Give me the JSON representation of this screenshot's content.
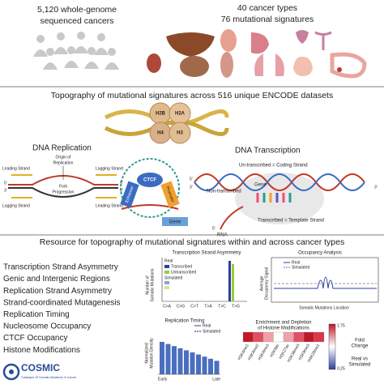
{
  "header": {
    "left": [
      "5,120 whole-genome",
      "sequenced cancers"
    ],
    "right": [
      "40 cancer types",
      "76 mutational signatures"
    ]
  },
  "topography": {
    "title": "Topography of mutational signatures across 516 unique ENCODE datasets",
    "histones": [
      "H2B",
      "H2A",
      "H4",
      "H3"
    ],
    "replication": {
      "title": "DNA Replication",
      "origin": [
        "Origin of",
        "Replication"
      ],
      "leading": [
        "Leading Strand",
        "Leading Strand"
      ],
      "lagging": [
        "Lagging Strand",
        "Lagging Strand"
      ],
      "fork": [
        "Fork",
        "Progression"
      ],
      "ends": [
        "5'",
        "3'",
        "5'",
        "3'"
      ]
    },
    "ctcf": {
      "protein": "CTCF",
      "enhancer": "Enhancer",
      "promoter": "Promoter",
      "gene": "Gene"
    },
    "transcription": {
      "title": "DNA Transcription",
      "coding": "Un-transcribed = Coding Strand",
      "non_transcribed": "Non-transcribed",
      "gene": "Gene",
      "rna": "RNA",
      "template": "Transcribed = Template Strand",
      "ends": [
        "5'",
        "3'",
        "5'",
        "3'"
      ]
    }
  },
  "resource": {
    "title": "Resource for topography of mutational signatures within and across cancer types",
    "items": [
      "Transcription Strand Asymmetry",
      "Genic and Intergenic Regions",
      "Replication Strand Asymmetry",
      "Strand-coordinated Mutagenesis",
      "Replication Timing",
      "Nucleosome Occupancy",
      "CTCF Occupancy",
      "Histone Modifications"
    ],
    "logo": {
      "name": "COSMIC",
      "tagline": "Catalogue Of Somatic Mutations In Cancer"
    },
    "strand_panel": {
      "title": "Transcription Strand Asymmetry",
      "ylabel": [
        "Number of",
        "Somatic Mutations"
      ],
      "legend": [
        "Real",
        "Transcribed",
        "Untranscribed",
        "Simulated"
      ],
      "categories": [
        "C>A",
        "C>G",
        "C>T",
        "T>A",
        "T>C",
        "T>G"
      ]
    },
    "occupancy_panel": {
      "title": "Occupancy Analysis",
      "ylabel": [
        "Average",
        "Occupancy Signal"
      ],
      "legend": [
        "Real",
        "Simulated"
      ],
      "xlabel": "Somatic Mutations Location"
    },
    "timing_panel": {
      "title": "Replication Timing",
      "legend": [
        "Real",
        "Simulated"
      ],
      "ylabel": [
        "Normalized",
        "Mutation Density"
      ],
      "xlabels": [
        "Early",
        "Late"
      ]
    },
    "histone_panel": {
      "title": [
        "Enrichment and Depletion",
        "of Histone Modifications"
      ],
      "columns": [
        "H3K4me1",
        "H3K4me2",
        "H3K4me3",
        "H3K9ac",
        "H3K27ac",
        "H3K36me3",
        "H3K9me3",
        "H4K20me1"
      ],
      "scale": [
        "1.75",
        "0.25"
      ],
      "scale_title": [
        "Fold",
        "Change"
      ],
      "scale_note": [
        "Real vs",
        "Simulated"
      ]
    }
  }
}
